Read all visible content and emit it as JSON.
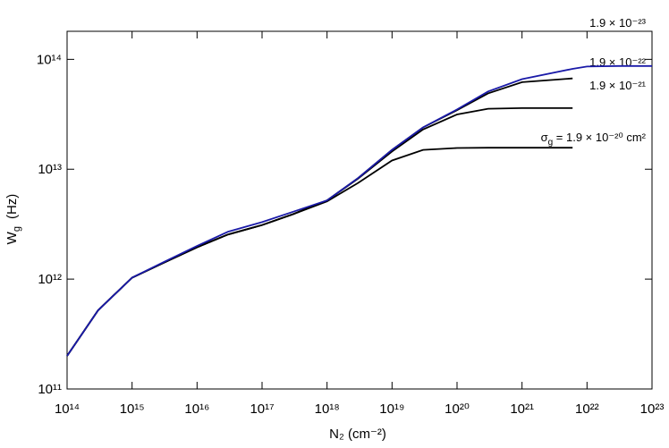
{
  "chart_data": {
    "type": "line",
    "xlabel": "N₂  (cm⁻²)",
    "ylabel": [
      "W",
      "g",
      "(Hz)"
    ],
    "log_x": true,
    "log_y": true,
    "xlim": [
      100000000000000.0,
      1e+23
    ],
    "ylim": [
      100000000000.0,
      180000000000000.0
    ],
    "xticks": [
      {
        "value": 100000000000000.0,
        "label": "10¹⁴"
      },
      {
        "value": 1000000000000000.0,
        "label": "10¹⁵"
      },
      {
        "value": 1e+16,
        "label": "10¹⁶"
      },
      {
        "value": 1e+17,
        "label": "10¹⁷"
      },
      {
        "value": 1e+18,
        "label": "10¹⁸"
      },
      {
        "value": 1e+19,
        "label": "10¹⁹"
      },
      {
        "value": 1e+20,
        "label": "10²⁰"
      },
      {
        "value": 1e+21,
        "label": "10²¹"
      },
      {
        "value": 1e+22,
        "label": "10²²"
      },
      {
        "value": 1e+23,
        "label": "10²³"
      }
    ],
    "yticks": [
      {
        "value": 100000000000.0,
        "label": "10¹¹"
      },
      {
        "value": 1000000000000.0,
        "label": "10¹²"
      },
      {
        "value": 10000000000000.0,
        "label": "10¹³"
      },
      {
        "value": 100000000000000.0,
        "label": "10¹⁴"
      }
    ],
    "x": [
      100000000000000.0,
      300000000000000.0,
      1000000000000000.0,
      3000000000000000.0,
      1e+16,
      3e+16,
      1e+17,
      3e+17,
      1e+18,
      3e+18,
      1e+19,
      3e+19,
      1e+20,
      3e+20,
      1e+21,
      6e+21,
      1e+22,
      3e+22,
      1e+23
    ],
    "series": [
      {
        "name": "1.9 × 10⁻²³",
        "color": "#1a1aa8",
        "values": [
          200000000000.0,
          520000000000.0,
          1030000000000.0,
          1420000000000.0,
          2000000000000.0,
          2700000000000.0,
          3300000000000.0,
          4100000000000.0,
          5200000000000.0,
          8300000000000.0,
          15000000000000.0,
          24000000000000.0,
          35000000000000.0,
          51000000000000.0,
          66000000000000.0,
          82000000000000.0,
          86000000000000.0,
          87000000000000.0,
          87000000000000.0
        ]
      },
      {
        "name": "1.9 × 10⁻²²",
        "color": "#000000",
        "values": [
          200000000000.0,
          520000000000.0,
          1030000000000.0,
          1400000000000.0,
          1950000000000.0,
          2550000000000.0,
          3100000000000.0,
          3900000000000.0,
          5200000000000.0,
          8300000000000.0,
          15000000000000.0,
          24000000000000.0,
          34500000000000.0,
          49000000000000.0,
          62000000000000.0,
          67000000000000.0,
          null,
          null,
          null
        ]
      },
      {
        "name": "1.9 × 10⁻²¹",
        "color": "#000000",
        "values": [
          200000000000.0,
          520000000000.0,
          1030000000000.0,
          1400000000000.0,
          1950000000000.0,
          2550000000000.0,
          3100000000000.0,
          3900000000000.0,
          5200000000000.0,
          8200000000000.0,
          14500000000000.0,
          23000000000000.0,
          31500000000000.0,
          35500000000000.0,
          36000000000000.0,
          36000000000000.0,
          null,
          null,
          null
        ]
      },
      {
        "name": [
          "σ",
          "g",
          " = 1.9 × 10⁻²⁰ cm²"
        ],
        "color": "#000000",
        "values": [
          200000000000.0,
          520000000000.0,
          1030000000000.0,
          1400000000000.0,
          1950000000000.0,
          2550000000000.0,
          3100000000000.0,
          3900000000000.0,
          5100000000000.0,
          7500000000000.0,
          12000000000000.0,
          15000000000000.0,
          15600000000000.0,
          15700000000000.0,
          15700000000000.0,
          15700000000000.0,
          null,
          null,
          null
        ]
      }
    ]
  }
}
